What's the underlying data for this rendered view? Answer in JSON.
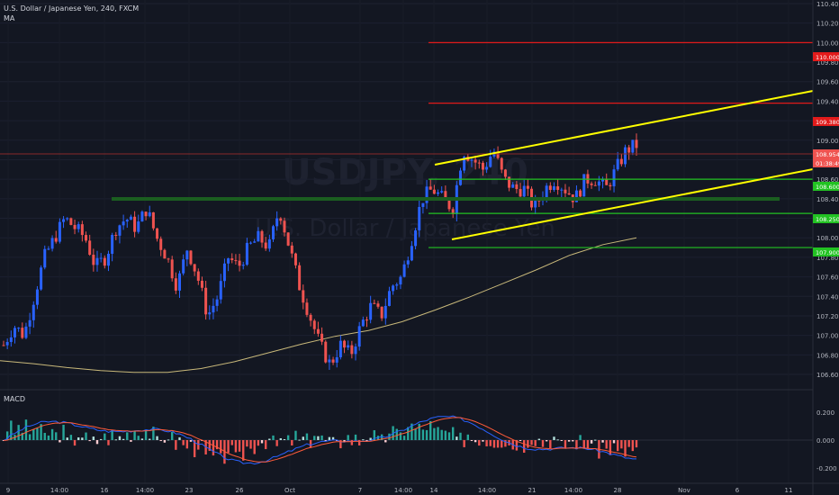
{
  "header": {
    "symbol_line": "U.S. Dollar / Japanese Yen, 240, FXCM",
    "indicator": "MA"
  },
  "watermark": {
    "ticker": "USDJPY, 240",
    "name": "U.S. Dollar / Japanese Yen"
  },
  "macd_pane": {
    "label": "MACD",
    "ticks": [
      "0.200",
      "0.000",
      "-0.200"
    ]
  },
  "price_axis": {
    "ticks": [
      "110.400",
      "110.200",
      "110.000",
      "109.800",
      "109.600",
      "109.400",
      "109.200",
      "109.000",
      "108.800",
      "108.600",
      "108.400",
      "108.200",
      "108.000",
      "107.800",
      "107.600",
      "107.400",
      "107.200",
      "107.000",
      "106.800",
      "106.600"
    ]
  },
  "price_labels": [
    {
      "text": "110.000",
      "color": "#e21b1b"
    },
    {
      "text": "109.380",
      "color": "#e21b1b"
    },
    {
      "text": "108.954",
      "color": "#ef5350"
    },
    {
      "text": "01:38:49",
      "color": "#ef5350"
    },
    {
      "text": "108.600",
      "color": "#22c222"
    },
    {
      "text": "108.250",
      "color": "#22c222"
    },
    {
      "text": "107.900",
      "color": "#22c222"
    }
  ],
  "time_axis": {
    "ticks": [
      "9",
      "14:00",
      "16",
      "14:00",
      "23",
      "26",
      "Oct",
      "7",
      "14:00",
      "14",
      "14:00",
      "21",
      "14:00",
      "28",
      "Nov",
      "6",
      "11"
    ]
  },
  "colors": {
    "background": "#131722",
    "bull": "#2962ff",
    "bear": "#ef5350",
    "support": "#22c222",
    "resistance": "#e21b1b",
    "channel": "#ffff00",
    "ma": "#c8b87a",
    "macd_line": "#2962ff",
    "signal_line": "#ff5b3a"
  },
  "chart_data": {
    "type": "candlestick",
    "symbol": "USDJPY",
    "timeframe": "240",
    "ylim": [
      106.5,
      110.5
    ],
    "horizontal_levels": [
      {
        "price": 110.0,
        "color": "#e21b1b"
      },
      {
        "price": 109.38,
        "color": "#e21b1b"
      },
      {
        "price": 108.6,
        "color": "#22c222"
      },
      {
        "price": 108.25,
        "color": "#22c222"
      },
      {
        "price": 107.9,
        "color": "#22c222"
      }
    ],
    "last_price": 108.954,
    "ma_curve": [
      106.74,
      106.71,
      106.67,
      106.64,
      106.62,
      106.62,
      106.66,
      106.73,
      106.82,
      106.91,
      106.99,
      107.05,
      107.14,
      107.26,
      107.39,
      107.53,
      107.67,
      107.82,
      107.93,
      108.0
    ],
    "candle_path": [
      106.9,
      107.1,
      107.0,
      107.4,
      107.8,
      108.0,
      108.2,
      108.1,
      108.0,
      107.7,
      107.8,
      108.1,
      108.2,
      108.1,
      108.3,
      108.0,
      107.8,
      107.5,
      107.9,
      107.6,
      107.2,
      107.4,
      107.8,
      107.7,
      107.9,
      108.0,
      107.9,
      108.3,
      107.9,
      107.5,
      107.2,
      106.9,
      106.7,
      106.9,
      106.8,
      107.1,
      107.3,
      107.2,
      107.5,
      107.6,
      108.0,
      108.4,
      108.5,
      108.4,
      108.3,
      108.9,
      108.8,
      108.7,
      108.9,
      108.6,
      108.5,
      108.5,
      108.3,
      108.5,
      108.6,
      108.5,
      108.4,
      108.6,
      108.6,
      108.5,
      108.7,
      108.9,
      108.95
    ]
  }
}
